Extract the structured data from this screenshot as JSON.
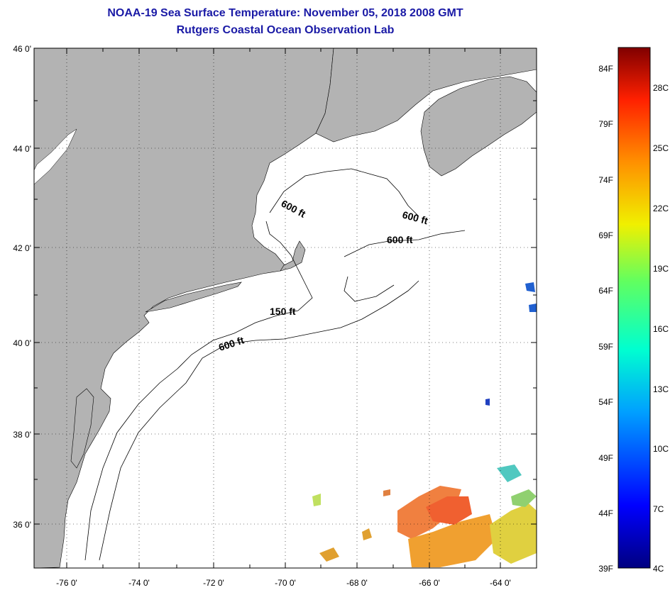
{
  "header": {
    "title": "NOAA-19 Sea Surface Temperature:  November 05, 2018 2008 GMT",
    "subtitle": "Rutgers Coastal Ocean Observation Lab"
  },
  "map": {
    "lon_range": [
      -77,
      -63
    ],
    "lat_range": [
      35,
      46
    ],
    "lon_ticks": [
      "-76 0'",
      "-74 0'",
      "-72 0'",
      "-70 0'",
      "-68 0'",
      "-66 0'",
      "-64 0'"
    ],
    "lat_ticks": [
      "46 0'",
      "44 0'",
      "42 0'",
      "40 0'",
      "38 0'",
      "36 0'"
    ],
    "land_color": "#b3b3b3",
    "ocean_color": "#ffffff",
    "contour_labels": [
      "600 ft",
      "600 ft",
      "600 ft",
      "150 ft",
      "600 ft"
    ]
  },
  "colorbar": {
    "top_color": "#800000",
    "bottom_color": "#000080",
    "fahrenheit_labels": [
      "84F",
      "79F",
      "74F",
      "69F",
      "64F",
      "59F",
      "54F",
      "49F",
      "44F",
      "39F"
    ],
    "celsius_labels": [
      "28C",
      "25C",
      "22C",
      "19C",
      "16C",
      "13C",
      "10C",
      "7C",
      "4C"
    ]
  }
}
